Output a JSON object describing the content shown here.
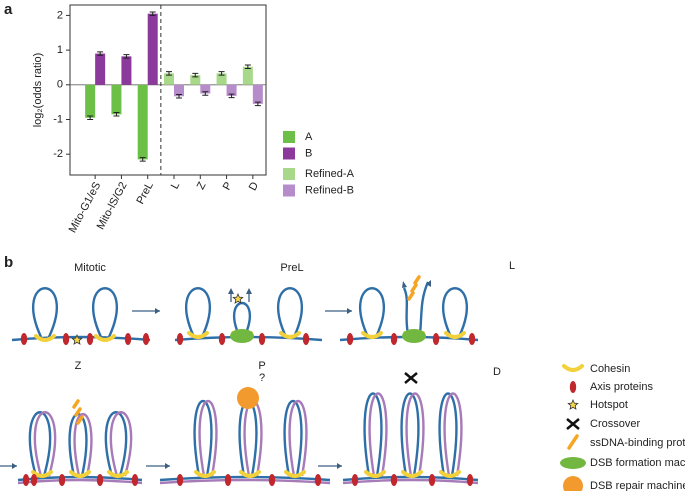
{
  "panel_labels": [
    "a",
    "b"
  ],
  "chart_data": {
    "type": "bar",
    "ylabel": "log₂(odds ratio)",
    "categories": [
      "Mito-G1/eS",
      "Mito-lS/G2",
      "PreL",
      "L",
      "Z",
      "P",
      "D"
    ],
    "series": [
      {
        "name": "A",
        "color": "#6cbf47",
        "values": [
          -0.95,
          -0.85,
          -2.15,
          null,
          null,
          null,
          null
        ],
        "errors": [
          0.05,
          0.05,
          0.05,
          null,
          null,
          null,
          null
        ]
      },
      {
        "name": "B",
        "color": "#8b3a9c",
        "values": [
          0.9,
          0.82,
          2.05,
          null,
          null,
          null,
          null
        ],
        "errors": [
          0.05,
          0.05,
          0.05,
          null,
          null,
          null,
          null
        ]
      },
      {
        "name": "Refined-A",
        "color": "#a8d88a",
        "values": [
          null,
          null,
          null,
          0.33,
          0.28,
          0.33,
          0.52
        ],
        "errors": [
          null,
          null,
          null,
          0.05,
          0.05,
          0.05,
          0.05
        ]
      },
      {
        "name": "Refined-B",
        "color": "#b78ccb",
        "values": [
          null,
          null,
          null,
          -0.33,
          -0.25,
          -0.32,
          -0.55
        ],
        "errors": [
          null,
          null,
          null,
          0.05,
          0.05,
          0.05,
          0.05
        ]
      }
    ],
    "ylim": [
      -2.6,
      2.3
    ],
    "yticks": [
      -2,
      -1,
      0,
      1,
      2
    ]
  },
  "diagram": {
    "stages": [
      "Mitotic",
      "PreL",
      "L",
      "Z",
      "P",
      "D"
    ],
    "question": "?",
    "legend": [
      "Cohesin",
      "Axis proteins",
      "Hotspot",
      "Crossover",
      "ssDNA-binding proteins",
      "DSB formation machinery",
      "DSB repair machinery"
    ]
  }
}
